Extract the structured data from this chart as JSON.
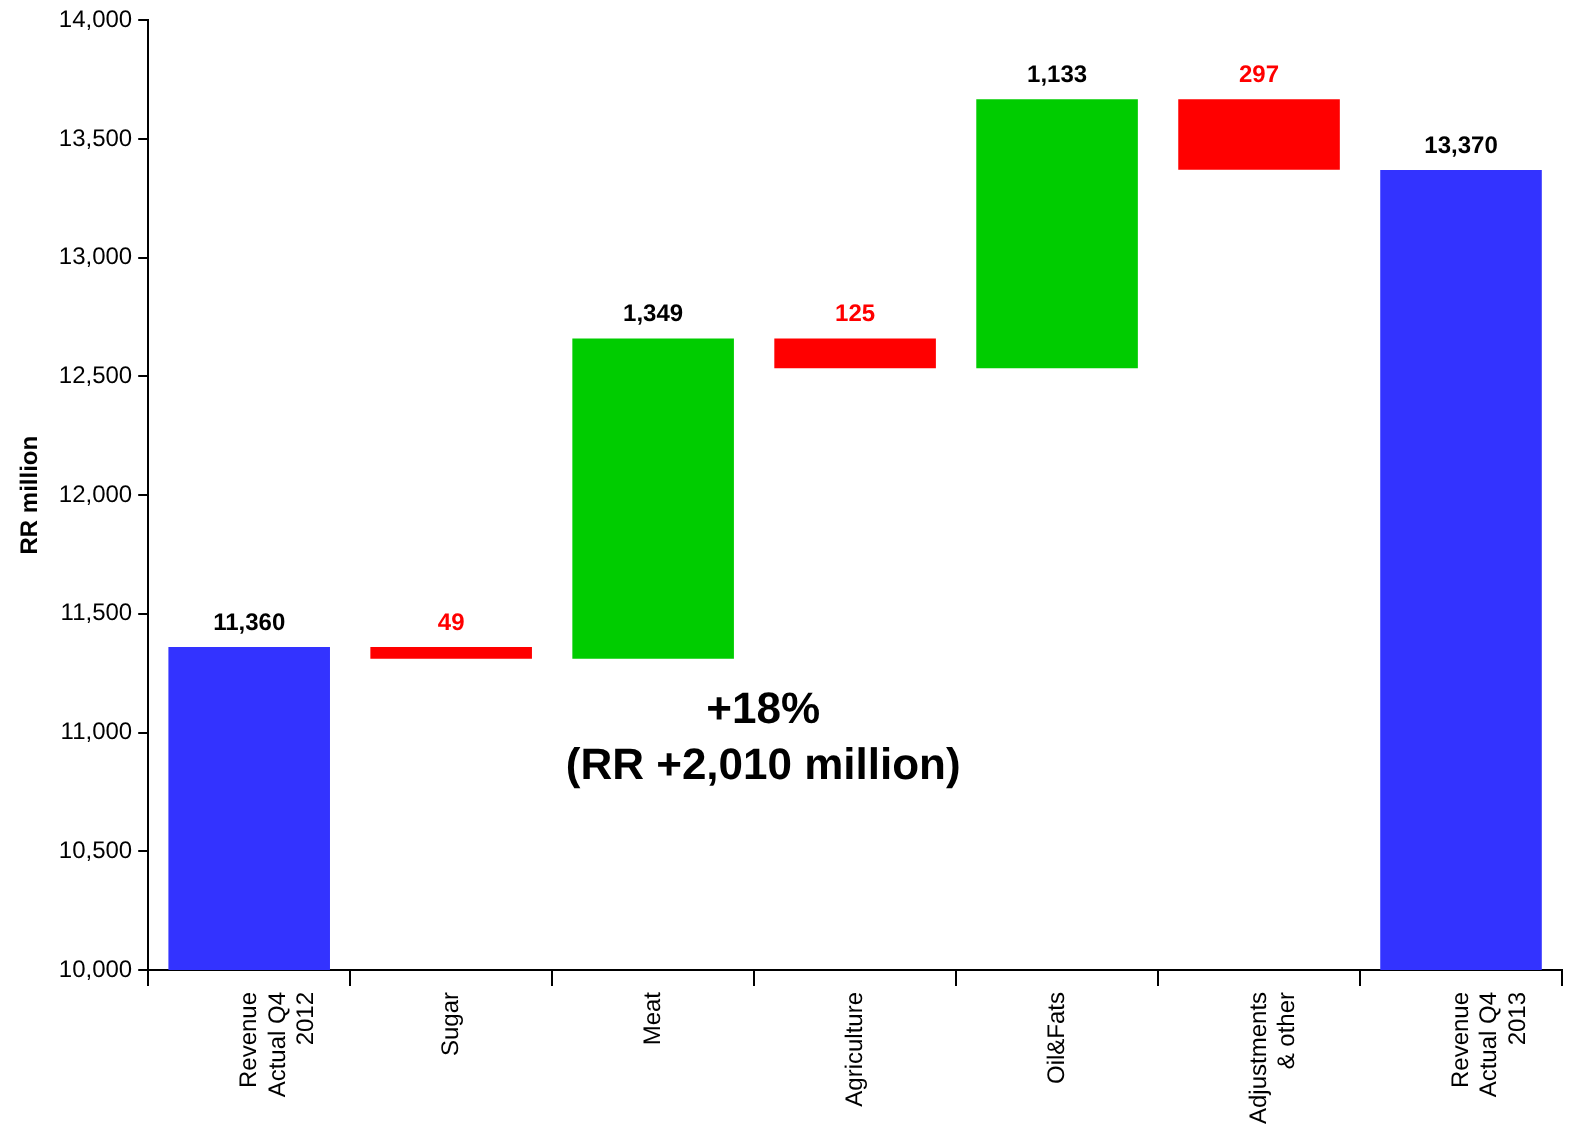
{
  "chart_data": {
    "type": "bar",
    "ylabel": "RR million",
    "categories": [
      "Revenue Actual Q4 2012",
      "Sugar",
      "Meat",
      "Agriculture",
      "Oil&Fats",
      "Adjustments & other",
      "Revenue Actual Q4 2013"
    ],
    "values": [
      11360,
      -49,
      1349,
      -125,
      1133,
      -297,
      13370
    ],
    "base": [
      null,
      11360,
      11311,
      12660,
      12535,
      13668,
      null
    ],
    "colors": [
      "#3333ff",
      "#ff0000",
      "#00cc00",
      "#ff0000",
      "#00cc00",
      "#ff0000",
      "#3333ff"
    ],
    "value_labels": [
      "11,360",
      "49",
      "1,349",
      "125",
      "1,133",
      "297",
      "13,370"
    ],
    "ylim": [
      10000,
      14000
    ],
    "yticks": [
      {
        "value": 10000,
        "label": "10,000"
      },
      {
        "value": 10500,
        "label": "10,500"
      },
      {
        "value": 11000,
        "label": "11,000"
      },
      {
        "value": 11500,
        "label": "11,500"
      },
      {
        "value": 12000,
        "label": "12,000"
      },
      {
        "value": 12500,
        "label": "12,500"
      },
      {
        "value": 13000,
        "label": "13,000"
      },
      {
        "value": 13500,
        "label": "13,500"
      },
      {
        "value": 14000,
        "label": "14,000"
      }
    ],
    "grid": false,
    "legend": false,
    "annotations": [
      "+18%",
      "(RR +2,010 million)"
    ]
  }
}
